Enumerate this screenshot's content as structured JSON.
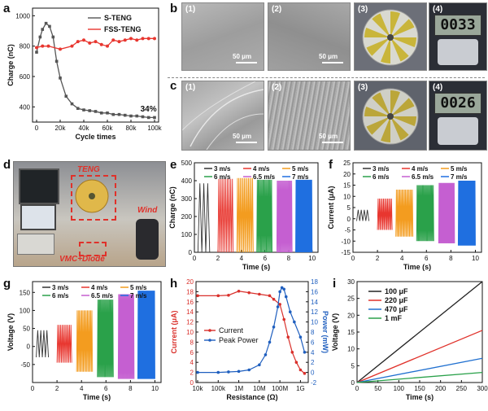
{
  "panels": {
    "a": {
      "label": "a"
    },
    "b": {
      "label": "b"
    },
    "c": {
      "label": "c"
    },
    "d": {
      "label": "d"
    },
    "e": {
      "label": "e"
    },
    "f": {
      "label": "f"
    },
    "g": {
      "label": "g"
    },
    "h": {
      "label": "h"
    },
    "i": {
      "label": "i"
    }
  },
  "micro_b": [
    {
      "sub": "(1)",
      "scale": "50 μm"
    },
    {
      "sub": "(2)",
      "scale": "50 μm"
    },
    {
      "sub": "(3)"
    },
    {
      "sub": "(4)",
      "reading": "0033"
    }
  ],
  "micro_c": [
    {
      "sub": "(1)",
      "scale": "50 μm"
    },
    {
      "sub": "(2)",
      "scale": "50 μm"
    },
    {
      "sub": "(3)"
    },
    {
      "sub": "(4)",
      "reading": "0026"
    }
  ],
  "photo_d": {
    "teng": "TENG",
    "wind": "Wind",
    "vmc": "VMC+Diode"
  },
  "colors": {
    "s_teng": "#555555",
    "fss_teng": "#e8362f",
    "speeds": [
      "#333333",
      "#e8362f",
      "#f39c1f",
      "#2aa14a",
      "#c55fd1",
      "#1f6fe0"
    ],
    "current": "#d9302b",
    "power": "#1f5fbf",
    "caps": [
      "#222222",
      "#e0312a",
      "#2070d0",
      "#2aa14a"
    ]
  },
  "chart_data": [
    {
      "id": "a",
      "type": "line",
      "xlabel": "Cycle times",
      "ylabel": "Charge (nC)",
      "xlim": [
        0,
        100000
      ],
      "ylim": [
        300,
        1050
      ],
      "xticks": [
        "0",
        "20k",
        "40k",
        "60k",
        "80k",
        "100k"
      ],
      "yticks": [
        "400",
        "600",
        "800",
        "1000"
      ],
      "annotation": "34%",
      "series": [
        {
          "name": "S-TENG",
          "x": [
            0,
            3000,
            5000,
            8000,
            11000,
            14000,
            17000,
            20000,
            25000,
            30000,
            35000,
            40000,
            45000,
            50000,
            55000,
            60000,
            65000,
            70000,
            75000,
            80000,
            85000,
            90000,
            95000,
            100000
          ],
          "y": [
            760,
            860,
            910,
            950,
            930,
            860,
            700,
            590,
            470,
            420,
            390,
            380,
            375,
            370,
            360,
            360,
            350,
            350,
            345,
            340,
            340,
            335,
            330,
            330
          ]
        },
        {
          "name": "FSS-TENG",
          "x": [
            0,
            5000,
            10000,
            20000,
            30000,
            35000,
            40000,
            45000,
            50000,
            55000,
            60000,
            65000,
            70000,
            75000,
            80000,
            85000,
            90000,
            95000,
            100000
          ],
          "y": [
            790,
            800,
            800,
            780,
            800,
            830,
            840,
            820,
            830,
            810,
            800,
            840,
            830,
            840,
            850,
            840,
            850,
            850,
            850
          ]
        }
      ]
    },
    {
      "id": "e",
      "type": "line",
      "xlabel": "Time (s)",
      "ylabel": "Charge (nC)",
      "xlim": [
        0,
        10.5
      ],
      "ylim": [
        0,
        500
      ],
      "xticks": [
        "0",
        "2",
        "4",
        "6",
        "8",
        "10"
      ],
      "yticks": [
        "0",
        "100",
        "200",
        "300",
        "400",
        "500"
      ],
      "series": [
        {
          "name": "3 m/s",
          "t": [
            0.3,
            1.3
          ],
          "cycles": 3,
          "amp": 385
        },
        {
          "name": "4 m/s",
          "t": [
            2.0,
            3.3
          ],
          "cycles": 9,
          "amp": 410
        },
        {
          "name": "5 m/s",
          "t": [
            3.6,
            5.0
          ],
          "cycles": 12,
          "amp": 415
        },
        {
          "name": "6 m/s",
          "t": [
            5.3,
            6.6
          ],
          "cycles": 16,
          "amp": 405
        },
        {
          "name": "6.5 m/s",
          "t": [
            7.0,
            8.3
          ],
          "cycles": 18,
          "amp": 400
        },
        {
          "name": "7 m/s",
          "t": [
            8.6,
            10.0
          ],
          "cycles": 22,
          "amp": 405
        }
      ]
    },
    {
      "id": "f",
      "type": "line",
      "xlabel": "Time (s)",
      "ylabel": "Current (μA)",
      "xlim": [
        0,
        10.5
      ],
      "ylim": [
        -15,
        25
      ],
      "xticks": [
        "0",
        "2",
        "4",
        "6",
        "8",
        "10"
      ],
      "yticks": [
        "-15",
        "-10",
        "-5",
        "0",
        "5",
        "10",
        "15",
        "20",
        "25"
      ],
      "series": [
        {
          "name": "3 m/s",
          "t": [
            0.3,
            1.3
          ],
          "cycles": 4,
          "pos": 4,
          "neg": -1
        },
        {
          "name": "4 m/s",
          "t": [
            2.0,
            3.2
          ],
          "cycles": 11,
          "pos": 9,
          "neg": -5
        },
        {
          "name": "5 m/s",
          "t": [
            3.5,
            4.9
          ],
          "cycles": 15,
          "pos": 13,
          "neg": -8
        },
        {
          "name": "6 m/s",
          "t": [
            5.2,
            6.6
          ],
          "cycles": 19,
          "pos": 15,
          "neg": -10
        },
        {
          "name": "6.5 m/s",
          "t": [
            7.0,
            8.3
          ],
          "cycles": 21,
          "pos": 16,
          "neg": -11
        },
        {
          "name": "7 m/s",
          "t": [
            8.6,
            10.0
          ],
          "cycles": 25,
          "pos": 17,
          "neg": -12
        }
      ]
    },
    {
      "id": "g",
      "type": "line",
      "xlabel": "Time (s)",
      "ylabel": "Voltage (V)",
      "xlim": [
        0,
        10.5
      ],
      "ylim": [
        -100,
        180
      ],
      "xticks": [
        "0",
        "2",
        "4",
        "6",
        "8",
        "10"
      ],
      "yticks": [
        "-50",
        "0",
        "50",
        "100",
        "150"
      ],
      "series": [
        {
          "name": "3 m/s",
          "t": [
            0.3,
            1.3
          ],
          "cycles": 4,
          "pos": 45,
          "neg": -30
        },
        {
          "name": "4 m/s",
          "t": [
            2.0,
            3.2
          ],
          "cycles": 10,
          "pos": 60,
          "neg": -45
        },
        {
          "name": "5 m/s",
          "t": [
            3.6,
            4.9
          ],
          "cycles": 14,
          "pos": 100,
          "neg": -70
        },
        {
          "name": "6 m/s",
          "t": [
            5.3,
            6.6
          ],
          "cycles": 18,
          "pos": 130,
          "neg": -85
        },
        {
          "name": "6.5 m/s",
          "t": [
            7.0,
            8.3
          ],
          "cycles": 20,
          "pos": 145,
          "neg": -90
        },
        {
          "name": "7 m/s",
          "t": [
            8.6,
            10.0
          ],
          "cycles": 24,
          "pos": 155,
          "neg": -90
        }
      ]
    },
    {
      "id": "h",
      "type": "line",
      "xlabel": "Resistance (Ω)",
      "ylabel": "Current (μA)",
      "ylabel2": "Power (mW)",
      "xlim_log": [
        4,
        9.3
      ],
      "ylim": [
        0,
        20
      ],
      "y2lim": [
        -2,
        18
      ],
      "xticks": [
        "10k",
        "100k",
        "1M",
        "10M",
        "100M",
        "1G"
      ],
      "yticks": [
        "0",
        "2",
        "4",
        "6",
        "8",
        "10",
        "12",
        "14",
        "16",
        "18",
        "20"
      ],
      "y2ticks": [
        "-2",
        "0",
        "2",
        "4",
        "6",
        "8",
        "10",
        "12",
        "14",
        "16",
        "18"
      ],
      "series": [
        {
          "name": "Current",
          "axis": "left",
          "log10_x": [
            4,
            5,
            5.5,
            6,
            6.5,
            7,
            7.5,
            7.7,
            8,
            8.2,
            8.4,
            8.6,
            8.8,
            9,
            9.2
          ],
          "y": [
            17.2,
            17.2,
            17.3,
            18.1,
            17.8,
            17.5,
            17.2,
            16.5,
            15.5,
            12.5,
            9,
            6,
            4,
            2.5,
            1.8
          ]
        },
        {
          "name": "Peak Power",
          "axis": "right",
          "log10_x": [
            4,
            5,
            5.5,
            6,
            6.5,
            7,
            7.3,
            7.5,
            7.7,
            7.9,
            8,
            8.1,
            8.2,
            8.3,
            8.5,
            8.7,
            9,
            9.2
          ],
          "y": [
            0,
            0,
            0.1,
            0.2,
            0.5,
            1.5,
            3.5,
            6,
            9,
            13,
            16,
            16.8,
            16.5,
            15,
            12,
            10,
            7,
            4
          ]
        }
      ]
    },
    {
      "id": "i",
      "type": "line",
      "xlabel": "Time (s)",
      "ylabel": "Voltage (V)",
      "xlim": [
        0,
        300
      ],
      "ylim": [
        0,
        30
      ],
      "xticks": [
        "0",
        "50",
        "100",
        "150",
        "200",
        "250",
        "300"
      ],
      "yticks": [
        "0",
        "5",
        "10",
        "15",
        "20",
        "25",
        "30"
      ],
      "series": [
        {
          "name": "100 μF",
          "x": [
            0,
            300
          ],
          "y": [
            0,
            30
          ]
        },
        {
          "name": "220 μF",
          "x": [
            0,
            300
          ],
          "y": [
            0,
            15.5
          ]
        },
        {
          "name": "470 μF",
          "x": [
            0,
            300
          ],
          "y": [
            0,
            7.2
          ]
        },
        {
          "name": "1 mF",
          "x": [
            0,
            300
          ],
          "y": [
            0,
            3
          ]
        }
      ]
    }
  ]
}
